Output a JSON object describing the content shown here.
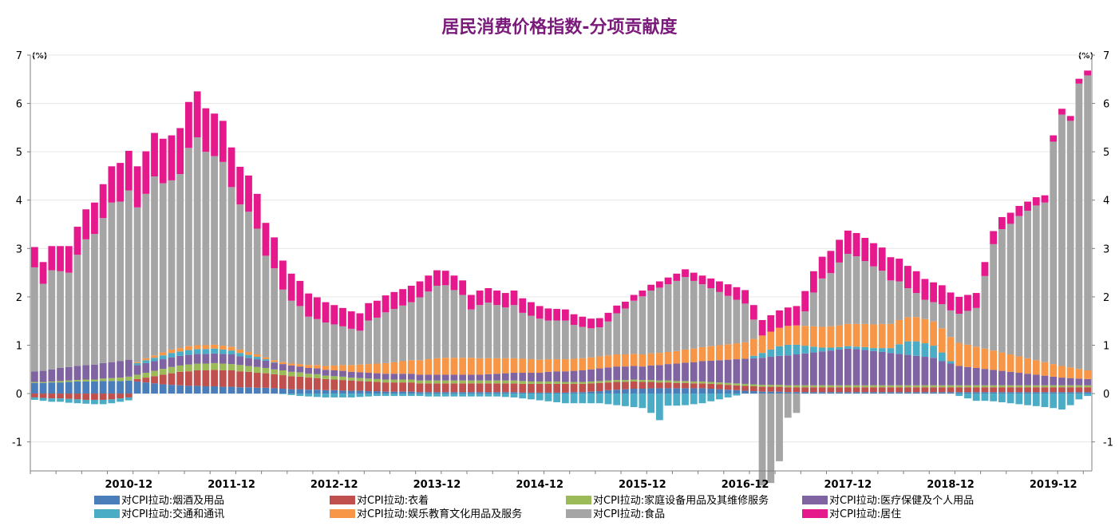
{
  "chart_data": {
    "type": "bar",
    "stacked": true,
    "title": "居民消费价格指数-分项贡献度",
    "y_unit_left": "(%)",
    "y_unit_right": "(%)",
    "ylim": [
      -1.6,
      7.0
    ],
    "y_ticks": [
      -1,
      0,
      1,
      2,
      3,
      4,
      5,
      6,
      7
    ],
    "x_ticks": [
      "2010-12",
      "2011-12",
      "2012-12",
      "2013-12",
      "2014-12",
      "2015-12",
      "2016-12",
      "2017-12",
      "2018-12",
      "2019-12"
    ],
    "x_tick_indices": [
      11,
      23,
      35,
      47,
      59,
      71,
      83,
      95,
      107,
      119
    ],
    "grid": true,
    "legend_placement": "bottom",
    "series": [
      {
        "name": "对CPI拉动:烟酒及用品",
        "color": "#4a7ebb",
        "values": [
          0.22,
          0.22,
          0.23,
          0.23,
          0.24,
          0.25,
          0.25,
          0.25,
          0.26,
          0.26,
          0.26,
          0.27,
          0.25,
          0.23,
          0.21,
          0.19,
          0.18,
          0.17,
          0.16,
          0.16,
          0.15,
          0.15,
          0.14,
          0.14,
          0.13,
          0.13,
          0.12,
          0.12,
          0.11,
          0.1,
          0.09,
          0.09,
          0.08,
          0.08,
          0.07,
          0.07,
          0.06,
          0.06,
          0.06,
          0.05,
          0.05,
          0.04,
          0.04,
          0.04,
          0.04,
          0.03,
          0.03,
          0.03,
          0.03,
          0.03,
          0.03,
          0.03,
          0.03,
          0.03,
          0.03,
          0.03,
          0.03,
          0.02,
          0.02,
          0.02,
          0.02,
          0.02,
          0.02,
          0.03,
          0.03,
          0.04,
          0.05,
          0.07,
          0.08,
          0.09,
          0.1,
          0.1,
          0.11,
          0.11,
          0.11,
          0.11,
          0.11,
          0.11,
          0.11,
          0.1,
          0.09,
          0.08,
          0.07,
          0.06,
          0.05,
          0.04,
          0.04,
          0.04,
          0.03,
          0.03,
          0.03,
          0.03,
          0.03,
          0.03,
          0.03,
          0.03,
          0.03,
          0.03,
          0.03,
          0.03,
          0.03,
          0.03,
          0.03,
          0.03,
          0.03,
          0.03,
          0.03,
          0.03,
          0.03,
          0.03,
          0.03,
          0.03,
          0.03,
          0.03,
          0.03,
          0.03,
          0.03,
          0.03,
          0.03,
          0.03,
          0.03,
          0.03,
          0.03,
          0.03
        ]
      },
      {
        "name": "对CPI拉动:衣着",
        "color": "#c0504d",
        "values": [
          -0.08,
          -0.09,
          -0.1,
          -0.1,
          -0.11,
          -0.12,
          -0.13,
          -0.13,
          -0.13,
          -0.12,
          -0.1,
          -0.08,
          0.05,
          0.1,
          0.15,
          0.2,
          0.24,
          0.28,
          0.3,
          0.32,
          0.33,
          0.34,
          0.34,
          0.34,
          0.33,
          0.32,
          0.31,
          0.3,
          0.29,
          0.28,
          0.27,
          0.26,
          0.25,
          0.24,
          0.23,
          0.22,
          0.22,
          0.21,
          0.2,
          0.2,
          0.19,
          0.19,
          0.19,
          0.19,
          0.19,
          0.18,
          0.18,
          0.18,
          0.18,
          0.18,
          0.18,
          0.18,
          0.18,
          0.18,
          0.18,
          0.18,
          0.18,
          0.18,
          0.18,
          0.18,
          0.18,
          0.18,
          0.18,
          0.17,
          0.17,
          0.17,
          0.17,
          0.16,
          0.16,
          0.15,
          0.15,
          0.14,
          0.13,
          0.12,
          0.12,
          0.11,
          0.11,
          0.1,
          0.1,
          0.1,
          0.1,
          0.1,
          0.1,
          0.1,
          0.1,
          0.1,
          0.1,
          0.1,
          0.1,
          0.1,
          0.1,
          0.1,
          0.1,
          0.1,
          0.1,
          0.1,
          0.1,
          0.1,
          0.1,
          0.1,
          0.1,
          0.1,
          0.1,
          0.1,
          0.1,
          0.1,
          0.1,
          0.1,
          0.1,
          0.1,
          0.1,
          0.1,
          0.1,
          0.1,
          0.1,
          0.1,
          0.1,
          0.1,
          0.1,
          0.1,
          0.1,
          0.1,
          0.1,
          0.1
        ]
      },
      {
        "name": "对CPI拉动:家庭设备用品及其维修服务",
        "color": "#9bbb59",
        "values": [
          0.02,
          0.02,
          0.02,
          0.03,
          0.03,
          0.03,
          0.04,
          0.04,
          0.05,
          0.06,
          0.07,
          0.08,
          0.09,
          0.1,
          0.11,
          0.12,
          0.13,
          0.13,
          0.14,
          0.14,
          0.14,
          0.14,
          0.14,
          0.13,
          0.13,
          0.12,
          0.12,
          0.11,
          0.1,
          0.1,
          0.09,
          0.09,
          0.08,
          0.08,
          0.07,
          0.07,
          0.07,
          0.06,
          0.06,
          0.06,
          0.06,
          0.06,
          0.06,
          0.06,
          0.06,
          0.06,
          0.06,
          0.06,
          0.06,
          0.06,
          0.06,
          0.06,
          0.06,
          0.06,
          0.06,
          0.06,
          0.06,
          0.06,
          0.05,
          0.05,
          0.05,
          0.05,
          0.04,
          0.04,
          0.04,
          0.04,
          0.04,
          0.04,
          0.04,
          0.04,
          0.04,
          0.04,
          0.04,
          0.04,
          0.04,
          0.04,
          0.04,
          0.04,
          0.04,
          0.04,
          0.04,
          0.04,
          0.04,
          0.04,
          0.04,
          0.04,
          0.04,
          0.04,
          0.04,
          0.04,
          0.04,
          0.04,
          0.04,
          0.04,
          0.04,
          0.04,
          0.04,
          0.04,
          0.04,
          0.04,
          0.04,
          0.04,
          0.04,
          0.04,
          0.04,
          0.04,
          0.04,
          0.04,
          0.04,
          0.04,
          0.04,
          0.04,
          0.04,
          0.04,
          0.04,
          0.04,
          0.04,
          0.04,
          0.04,
          0.04,
          0.04,
          0.04,
          0.04,
          0.04
        ]
      },
      {
        "name": "对CPI拉动:医疗保健及个人用品",
        "color": "#8064a2",
        "values": [
          0.22,
          0.23,
          0.25,
          0.27,
          0.28,
          0.29,
          0.3,
          0.31,
          0.32,
          0.33,
          0.34,
          0.35,
          0.2,
          0.2,
          0.2,
          0.2,
          0.2,
          0.2,
          0.2,
          0.2,
          0.2,
          0.2,
          0.2,
          0.2,
          0.18,
          0.17,
          0.16,
          0.15,
          0.14,
          0.13,
          0.13,
          0.12,
          0.12,
          0.12,
          0.12,
          0.12,
          0.12,
          0.12,
          0.12,
          0.12,
          0.12,
          0.12,
          0.12,
          0.12,
          0.12,
          0.12,
          0.12,
          0.12,
          0.12,
          0.12,
          0.12,
          0.12,
          0.12,
          0.13,
          0.14,
          0.15,
          0.16,
          0.17,
          0.18,
          0.18,
          0.2,
          0.21,
          0.22,
          0.23,
          0.24,
          0.25,
          0.26,
          0.27,
          0.28,
          0.28,
          0.28,
          0.28,
          0.3,
          0.32,
          0.34,
          0.36,
          0.38,
          0.4,
          0.42,
          0.44,
          0.46,
          0.48,
          0.5,
          0.52,
          0.54,
          0.56,
          0.58,
          0.6,
          0.62,
          0.64,
          0.66,
          0.68,
          0.7,
          0.72,
          0.74,
          0.76,
          0.75,
          0.73,
          0.71,
          0.69,
          0.67,
          0.65,
          0.63,
          0.61,
          0.59,
          0.57,
          0.5,
          0.45,
          0.4,
          0.38,
          0.36,
          0.34,
          0.32,
          0.3,
          0.28,
          0.26,
          0.24,
          0.22,
          0.2,
          0.18,
          0.16,
          0.15,
          0.14,
          0.13
        ]
      },
      {
        "name": "对CPI拉动:交通和通讯",
        "color": "#4bacc6",
        "values": [
          -0.05,
          -0.06,
          -0.07,
          -0.07,
          -0.08,
          -0.08,
          -0.08,
          -0.09,
          -0.09,
          -0.08,
          -0.07,
          -0.06,
          0.04,
          0.06,
          0.07,
          0.08,
          0.09,
          0.09,
          0.1,
          0.1,
          0.1,
          0.1,
          0.09,
          0.08,
          0.07,
          0.06,
          0.05,
          0.03,
          0.01,
          -0.01,
          -0.03,
          -0.05,
          -0.06,
          -0.07,
          -0.08,
          -0.08,
          -0.08,
          -0.08,
          -0.07,
          -0.06,
          -0.05,
          -0.05,
          -0.05,
          -0.05,
          -0.05,
          -0.05,
          -0.06,
          -0.06,
          -0.06,
          -0.06,
          -0.06,
          -0.06,
          -0.06,
          -0.06,
          -0.06,
          -0.07,
          -0.08,
          -0.1,
          -0.12,
          -0.14,
          -0.16,
          -0.18,
          -0.2,
          -0.2,
          -0.2,
          -0.2,
          -0.2,
          -0.22,
          -0.24,
          -0.26,
          -0.28,
          -0.3,
          -0.4,
          -0.55,
          -0.25,
          -0.25,
          -0.24,
          -0.22,
          -0.2,
          -0.16,
          -0.12,
          -0.08,
          -0.04,
          0.0,
          0.05,
          0.1,
          0.15,
          0.2,
          0.22,
          0.2,
          0.16,
          0.12,
          0.08,
          0.06,
          0.05,
          0.05,
          0.05,
          0.06,
          0.06,
          0.08,
          0.1,
          0.2,
          0.28,
          0.3,
          0.28,
          0.25,
          0.18,
          0.05,
          -0.05,
          -0.1,
          -0.15,
          -0.15,
          -0.16,
          -0.18,
          -0.2,
          -0.22,
          -0.24,
          -0.26,
          -0.28,
          -0.3,
          -0.33,
          -0.24,
          -0.12,
          -0.05,
          -0.15
        ]
      },
      {
        "name": "对CPI拉动:娱乐教育文化用品及服务",
        "color": "#f79646",
        "values": [
          0.0,
          0.0,
          0.0,
          0.0,
          0.0,
          0.0,
          0.0,
          0.0,
          0.0,
          0.0,
          0.0,
          0.0,
          0.02,
          0.04,
          0.05,
          0.06,
          0.07,
          0.07,
          0.08,
          0.08,
          0.08,
          0.08,
          0.08,
          0.08,
          0.07,
          0.06,
          0.05,
          0.04,
          0.04,
          0.04,
          0.04,
          0.05,
          0.06,
          0.07,
          0.08,
          0.1,
          0.12,
          0.14,
          0.16,
          0.18,
          0.2,
          0.22,
          0.24,
          0.26,
          0.28,
          0.3,
          0.32,
          0.34,
          0.35,
          0.35,
          0.35,
          0.35,
          0.34,
          0.33,
          0.32,
          0.31,
          0.3,
          0.29,
          0.28,
          0.27,
          0.26,
          0.25,
          0.25,
          0.25,
          0.25,
          0.25,
          0.25,
          0.25,
          0.25,
          0.25,
          0.25,
          0.25,
          0.25,
          0.25,
          0.25,
          0.26,
          0.27,
          0.28,
          0.29,
          0.3,
          0.31,
          0.32,
          0.33,
          0.34,
          0.35,
          0.36,
          0.37,
          0.38,
          0.39,
          0.4,
          0.41,
          0.42,
          0.43,
          0.44,
          0.45,
          0.46,
          0.47,
          0.48,
          0.49,
          0.5,
          0.5,
          0.5,
          0.5,
          0.5,
          0.5,
          0.5,
          0.5,
          0.5,
          0.48,
          0.46,
          0.44,
          0.42,
          0.4,
          0.38,
          0.36,
          0.34,
          0.32,
          0.3,
          0.28,
          0.26,
          0.24,
          0.22,
          0.2,
          0.18
        ]
      },
      {
        "name": "对CPI拉动:食品",
        "color": "#a5a5a5",
        "values": [
          2.15,
          1.8,
          2.05,
          2.0,
          1.95,
          2.3,
          2.6,
          2.7,
          3.0,
          3.3,
          3.3,
          3.5,
          3.2,
          3.4,
          3.7,
          3.5,
          3.5,
          3.6,
          4.1,
          4.3,
          4.0,
          3.9,
          3.8,
          3.3,
          3.0,
          2.9,
          2.6,
          2.1,
          1.9,
          1.5,
          1.3,
          1.2,
          1.0,
          0.95,
          0.9,
          0.85,
          0.8,
          0.75,
          0.7,
          0.9,
          0.95,
          1.05,
          1.1,
          1.15,
          1.2,
          1.3,
          1.4,
          1.5,
          1.5,
          1.4,
          1.3,
          1.0,
          1.1,
          1.15,
          1.1,
          1.05,
          1.1,
          0.95,
          0.9,
          0.85,
          0.8,
          0.8,
          0.8,
          0.7,
          0.65,
          0.6,
          0.6,
          0.7,
          0.85,
          0.95,
          1.1,
          1.2,
          1.3,
          1.35,
          1.4,
          1.45,
          1.5,
          1.4,
          1.3,
          1.2,
          1.1,
          1.0,
          0.9,
          0.8,
          0.4,
          -1.9,
          -1.85,
          -1.4,
          -0.5,
          -0.4,
          0.3,
          0.7,
          1.0,
          1.1,
          1.3,
          1.45,
          1.4,
          1.3,
          1.2,
          1.1,
          0.9,
          0.8,
          0.6,
          0.5,
          0.4,
          0.4,
          0.5,
          0.55,
          0.6,
          0.7,
          0.8,
          1.5,
          2.2,
          2.55,
          2.7,
          2.9,
          3.05,
          3.2,
          3.3,
          4.6,
          5.2,
          5.1,
          5.9,
          6.1
        ]
      },
      {
        "name": "对CPI拉动:居住",
        "color": "#e6198c",
        "values": [
          0.42,
          0.45,
          0.5,
          0.52,
          0.55,
          0.58,
          0.62,
          0.65,
          0.7,
          0.75,
          0.8,
          0.82,
          0.85,
          0.88,
          0.9,
          0.92,
          0.93,
          0.95,
          0.95,
          0.95,
          0.9,
          0.88,
          0.85,
          0.82,
          0.78,
          0.75,
          0.72,
          0.68,
          0.64,
          0.6,
          0.56,
          0.52,
          0.48,
          0.45,
          0.42,
          0.4,
          0.38,
          0.36,
          0.36,
          0.36,
          0.35,
          0.35,
          0.35,
          0.34,
          0.34,
          0.33,
          0.33,
          0.32,
          0.3,
          0.3,
          0.3,
          0.3,
          0.3,
          0.3,
          0.3,
          0.3,
          0.3,
          0.3,
          0.28,
          0.26,
          0.25,
          0.24,
          0.23,
          0.22,
          0.21,
          0.2,
          0.19,
          0.18,
          0.16,
          0.14,
          0.12,
          0.12,
          0.12,
          0.13,
          0.14,
          0.15,
          0.16,
          0.17,
          0.18,
          0.2,
          0.22,
          0.24,
          0.26,
          0.28,
          0.3,
          0.32,
          0.34,
          0.36,
          0.38,
          0.4,
          0.42,
          0.44,
          0.45,
          0.46,
          0.47,
          0.48,
          0.48,
          0.48,
          0.48,
          0.48,
          0.48,
          0.47,
          0.46,
          0.45,
          0.43,
          0.41,
          0.39,
          0.37,
          0.35,
          0.33,
          0.31,
          0.29,
          0.27,
          0.25,
          0.23,
          0.21,
          0.19,
          0.17,
          0.15,
          0.13,
          0.12,
          0.1,
          0.1,
          0.1
        ]
      }
    ]
  }
}
